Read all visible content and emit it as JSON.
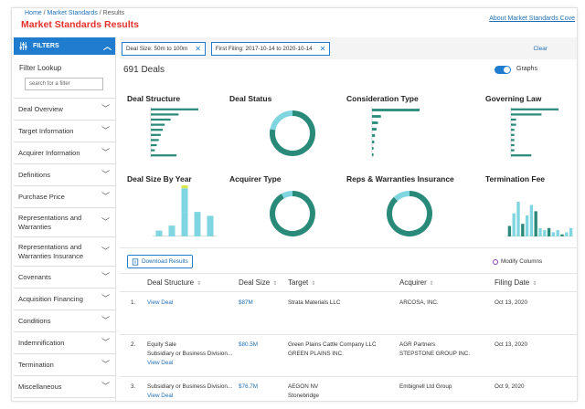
{
  "header": {
    "breadcrumbs": [
      "Home",
      "Market Standards",
      "Results"
    ],
    "title": "Market Standards Results",
    "about_link": "About Market Standards Cove"
  },
  "sidebar": {
    "filters_label": "FILTERS",
    "lookup_label": "Filter Lookup",
    "lookup_placeholder": "search for a filter",
    "items": [
      {
        "label": "Deal Overview"
      },
      {
        "label": "Target Information"
      },
      {
        "label": "Acquirer Information"
      },
      {
        "label": "Definitions"
      },
      {
        "label": "Purchase Price"
      },
      {
        "label": "Representations and Warranties"
      },
      {
        "label": "Representations and Warranties Insurance"
      },
      {
        "label": "Covenants"
      },
      {
        "label": "Acquisition Financing"
      },
      {
        "label": "Conditions"
      },
      {
        "label": "Indemnification"
      },
      {
        "label": "Termination"
      },
      {
        "label": "Miscellaneous"
      }
    ]
  },
  "filters": {
    "chips": [
      "Deal Size: 50m to 100m",
      "First Filing: 2017-10-14 to 2020-10-14"
    ],
    "clear_label": "Clear"
  },
  "summary": {
    "deal_count": "691 Deals",
    "graphs_label": "Graphs",
    "graphs_on": true
  },
  "charts": {
    "titles": [
      "Deal Structure",
      "Deal Status",
      "Consideration Type",
      "Governing Law",
      "Deal Size By Year",
      "Acquirer Type",
      "Reps & Warranties Insurance",
      "Termination Fee"
    ],
    "colors": {
      "primary": "#2a8a7a",
      "secondary": "#7fd6e0",
      "accent": "#d7e84a"
    }
  },
  "chart_data": [
    {
      "type": "bar",
      "title": "Deal Structure",
      "orientation": "horizontal",
      "values": [
        24,
        14,
        10,
        7,
        6,
        5,
        4,
        3,
        2,
        13
      ]
    },
    {
      "type": "pie",
      "title": "Deal Status",
      "variant": "donut",
      "values": [
        78,
        22
      ]
    },
    {
      "type": "bar",
      "title": "Consideration Type",
      "orientation": "horizontal",
      "values": [
        32,
        6,
        4,
        3,
        2,
        1.5,
        1,
        1
      ]
    },
    {
      "type": "bar",
      "title": "Governing Law",
      "orientation": "horizontal",
      "values": [
        28,
        18,
        3,
        3,
        2,
        2,
        2,
        2,
        2,
        12
      ]
    },
    {
      "type": "bar",
      "title": "Deal Size By Year",
      "stacked": true,
      "series": [
        {
          "name": "",
          "values": [
            6,
            11,
            25,
            25,
            21
          ]
        },
        {
          "name": "",
          "values": [
            0,
            0,
            24,
            0,
            0
          ]
        },
        {
          "name": "",
          "values": [
            0,
            0,
            3,
            0,
            0
          ]
        }
      ]
    },
    {
      "type": "pie",
      "title": "Acquirer Type",
      "variant": "donut",
      "values": [
        92,
        8
      ]
    },
    {
      "type": "pie",
      "title": "Reps & Warranties Insurance",
      "variant": "donut",
      "values": [
        88,
        12
      ]
    },
    {
      "type": "bar",
      "title": "Termination Fee",
      "values": [
        10,
        22,
        33,
        12,
        20,
        30,
        24,
        8,
        6,
        8,
        4,
        6,
        2,
        4,
        8
      ]
    }
  ],
  "toolbar": {
    "download_label": "Download Results",
    "modify_label": "Modify Columns"
  },
  "table": {
    "headers": [
      "Deal Structure",
      "Deal Size",
      "Target",
      "Acquirer",
      "Filing Date"
    ],
    "rows": [
      {
        "num": "1.",
        "structure": [
          "View Deal"
        ],
        "size": "$87M",
        "target": [
          "Strata Materials LLC"
        ],
        "acquirer": [
          "ARCOSA, INC."
        ],
        "date": "Oct 13, 2020"
      },
      {
        "num": "2.",
        "structure": [
          "Equity Sale",
          "Subsidiary or Business Division...",
          "View Deal"
        ],
        "size": "$80.5M",
        "target": [
          "Green Plains Cattle Company LLC",
          "GREEN PLAINS INC."
        ],
        "acquirer": [
          "AGR Partners",
          "STEPSTONE GROUP INC."
        ],
        "date": "Oct 13, 2020"
      },
      {
        "num": "3.",
        "structure": [
          "Subsidiary or Business Division...",
          "View Deal"
        ],
        "size": "$76.7M",
        "target": [
          "AEGON NV",
          "Stonebridge"
        ],
        "acquirer": [
          "Embignell Ltd Group"
        ],
        "date": "Oct 9, 2020"
      }
    ]
  }
}
